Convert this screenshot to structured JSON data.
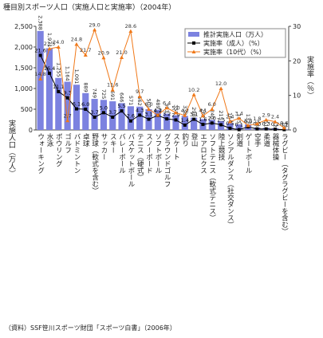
{
  "chart_data": {
    "type": "bar_line",
    "title": "種目別スポーツ人口（実施人口と実施率）（2004年）",
    "ylabel": "実施人口（万人）",
    "y2label": "実施率（％）",
    "source": "（資料）SSF笹川スポーツ財団「スポーツ白書」（2006年）",
    "categories": [
      "ウォーキング",
      "水泳",
      "ボウリング",
      "ゴルフ",
      "バドミントン",
      "卓球",
      "野球（軟式を含む）",
      "サッカー",
      "スキー",
      "バレーボール",
      "バスケットボール",
      "テニス（硬式）",
      "スノーボード",
      "ソフトボール",
      "グラウンドゴルフ",
      "スケート",
      "釣り",
      "登山",
      "エアロビクス",
      "ソフトテニス（軟式テニス）",
      "陸上競技",
      "ソシアルダンス（社交ダンス）",
      "剣道",
      "ゲートボール",
      "空手",
      "柔道",
      "器械体操",
      "ラグビー（タグラグビーを含む）"
    ],
    "series": [
      {
        "name": "推計実施人口（万人）",
        "type": "bar",
        "color": "#7c82e0",
        "values": [
          2388,
          1971,
          1255,
          1164,
          1091,
          889,
          749,
          725,
          691,
          646,
          571,
          562,
          501,
          489,
          393,
          355,
          338,
          298,
          262,
          240,
          215,
          164,
          135,
          132,
          58,
          51,
          42,
          18
        ],
        "value_labels": [
          "2,388",
          "1,971",
          "1,255",
          "1,164",
          "1,091",
          "889",
          "749",
          "725",
          "691",
          "646",
          "571",
          "562",
          "501",
          "489",
          "393",
          "355",
          "338",
          "298",
          "262",
          "240",
          "215",
          "164",
          "135",
          "132",
          "58",
          "51",
          "42",
          "18"
        ]
      },
      {
        "name": "実施率（成人）（%）",
        "type": "line",
        "axis": "y2",
        "color": "#000000",
        "marker": "square",
        "values": [
          21.6,
          16.4,
          11.1,
          9.3,
          6.1,
          6.0,
          3.7,
          5.0,
          3.7,
          5.5,
          2.6,
          4.3,
          3.1,
          4.2,
          3.2,
          2.9,
          1.4,
          3.1,
          1.6,
          2.0,
          1.5,
          0.5,
          0.1,
          0.9,
          0.3,
          0.3,
          0.2,
          0.1
        ],
        "value_labels": [
          "21.6",
          "16.4",
          "11.1",
          "9.3",
          "6.1",
          "6.0",
          "3.7",
          "5.0",
          "3.7",
          "5.5",
          "2.6",
          "4.3",
          "3.1",
          "4.2",
          "3.2",
          "2.9",
          "1.4",
          "3.1",
          "1.6",
          "2.0",
          "1.5",
          "0.5",
          "0.1",
          "0.9",
          "0.3",
          "0.3",
          "0.2",
          "0.1"
        ]
      },
      {
        "name": "実施率（10代）（%）",
        "type": "line",
        "axis": "y2",
        "color": "#f07818",
        "marker": "triangle",
        "values": [
          14.8,
          23.5,
          24.0,
          2.7,
          24.8,
          21.7,
          29.0,
          20.9,
          11.6,
          21.0,
          28.6,
          9.7,
          6.0,
          4.3,
          6.4,
          5.0,
          4.2,
          10.2,
          4.1,
          6.0,
          12.0,
          2.4,
          3.4,
          1.3,
          1.8,
          2.9,
          2.4,
          0.6
        ],
        "value_labels": [
          "14.8",
          "23.5",
          "24.0",
          "2.7",
          "24.8",
          "21.7",
          "29.0",
          "20.9",
          "11.6",
          "21.0",
          "28.6",
          "9.7",
          "6.0",
          "4.3",
          "6.4",
          "5.0",
          "4.2",
          "10.2",
          "4.1",
          "6.0",
          "12.0",
          "2.4",
          "3.4",
          "1.3",
          "1.8",
          "2.9",
          "2.4",
          "0.6"
        ]
      }
    ],
    "ylim": [
      0,
      2500
    ],
    "yticks": [
      0,
      500,
      {
        "value": 1000,
        "label": "1,000"
      },
      {
        "value": 1500,
        "label": "1,500"
      },
      {
        "value": 2000,
        "label": "2,000"
      },
      {
        "value": 2500,
        "label": "2,500"
      }
    ],
    "y2lim": [
      0,
      30
    ],
    "y2ticks": [
      0,
      10,
      20,
      30
    ],
    "legend": "upper right"
  }
}
